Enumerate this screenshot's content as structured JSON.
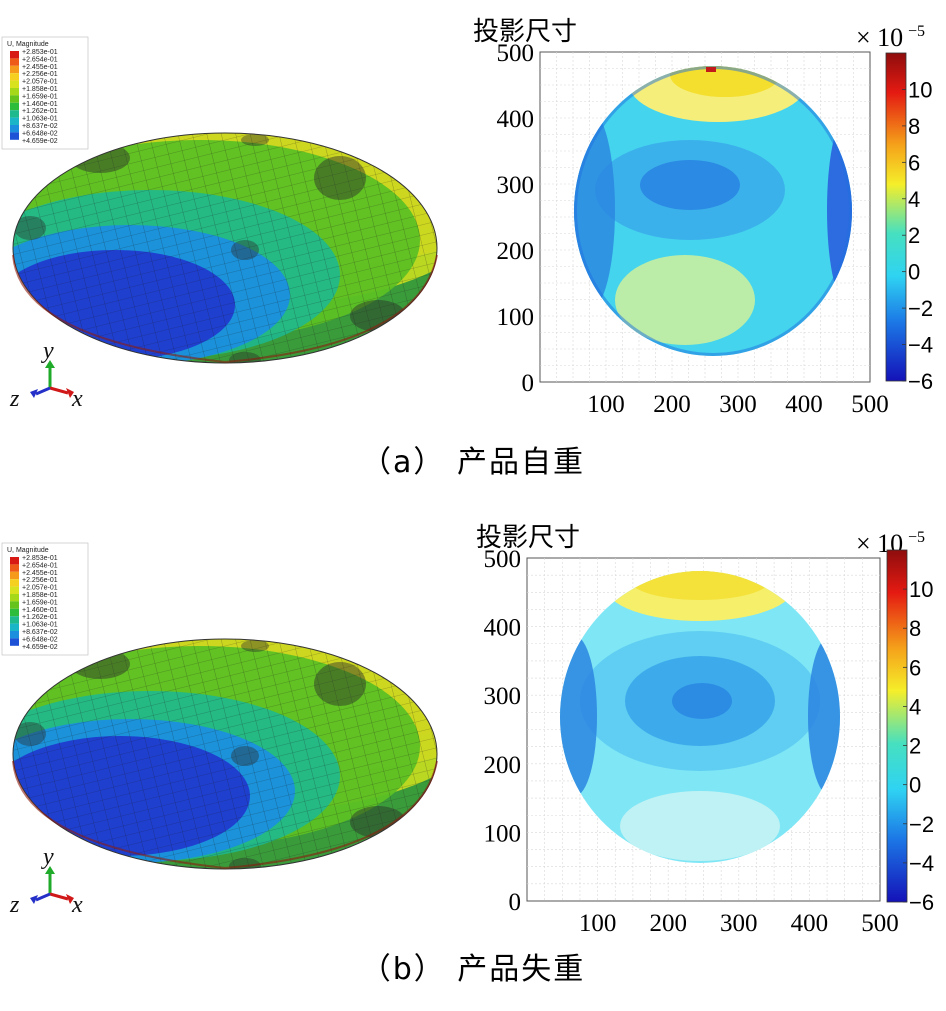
{
  "figure": {
    "panels": [
      {
        "id": "a",
        "caption": "（a） 产品自重",
        "fem": {
          "legend_title": "U, Magnitude",
          "legend_values": [
            "+2.853e-01",
            "+2.654e-01",
            "+2.455e-01",
            "+2.256e-01",
            "+2.057e-01",
            "+1.858e-01",
            "+1.659e-01",
            "+1.460e-01",
            "+1.262e-01",
            "+1.063e-01",
            "+8.637e-02",
            "+6.648e-02",
            "+4.659e-02"
          ],
          "legend_colors": [
            "#d71a14",
            "#ee5a17",
            "#f59a1b",
            "#f6d020",
            "#d8e21e",
            "#a6d81a",
            "#66c31c",
            "#2ebd3a",
            "#1eb98d",
            "#1ab6c7",
            "#1c8ede",
            "#1e52d6",
            "#2124b8"
          ],
          "axis_labels": {
            "y": "y",
            "z": "z",
            "x": "x"
          }
        },
        "contour": {
          "title": "投影尺寸",
          "multiplier_base": "× 10",
          "multiplier_exp": "−5",
          "colorbar_ticks": [
            "10",
            "8",
            "6",
            "4",
            "2",
            "0",
            "−2",
            "−4",
            "−6"
          ]
        },
        "chart_data": {
          "type": "heatmap",
          "title": "投影尺寸",
          "xlim": [
            0,
            500
          ],
          "ylim": [
            0,
            500
          ],
          "x_ticks": [
            "100",
            "200",
            "300",
            "400",
            "500"
          ],
          "y_ticks": [
            "0",
            "100",
            "200",
            "300",
            "400",
            "500"
          ],
          "colorbar": {
            "range": [
              -6,
              12
            ],
            "ticks": [
              10,
              8,
              6,
              4,
              2,
              0,
              -2,
              -4,
              -6
            ],
            "multiplier": "×10^-5"
          },
          "grid": true
        }
      },
      {
        "id": "b",
        "caption": "（b） 产品失重",
        "fem": {
          "legend_title": "U, Magnitude",
          "legend_values": [
            "+2.853e-01",
            "+2.654e-01",
            "+2.455e-01",
            "+2.256e-01",
            "+2.057e-01",
            "+1.858e-01",
            "+1.659e-01",
            "+1.460e-01",
            "+1.262e-01",
            "+1.063e-01",
            "+8.637e-02",
            "+6.648e-02",
            "+4.659e-02"
          ],
          "legend_colors": [
            "#d71a14",
            "#ee5a17",
            "#f59a1b",
            "#f6d020",
            "#d8e21e",
            "#a6d81a",
            "#66c31c",
            "#2ebd3a",
            "#1eb98d",
            "#1ab6c7",
            "#1c8ede",
            "#1e52d6",
            "#2124b8"
          ],
          "axis_labels": {
            "y": "y",
            "z": "z",
            "x": "x"
          }
        },
        "contour": {
          "title": "投影尺寸",
          "multiplier_base": "× 10",
          "multiplier_exp": "−5",
          "colorbar_ticks": [
            "10",
            "8",
            "6",
            "4",
            "2",
            "0",
            "−2",
            "−4",
            "−6"
          ]
        },
        "chart_data": {
          "type": "heatmap",
          "title": "投影尺寸",
          "xlim": [
            0,
            500
          ],
          "ylim": [
            0,
            500
          ],
          "x_ticks": [
            "100",
            "200",
            "300",
            "400",
            "500"
          ],
          "y_ticks": [
            "0",
            "100",
            "200",
            "300",
            "400",
            "500"
          ],
          "colorbar": {
            "range": [
              -6,
              12
            ],
            "ticks": [
              10,
              8,
              6,
              4,
              2,
              0,
              -2,
              -4,
              -6
            ],
            "multiplier": "×10^-5"
          },
          "grid": true
        }
      }
    ]
  }
}
